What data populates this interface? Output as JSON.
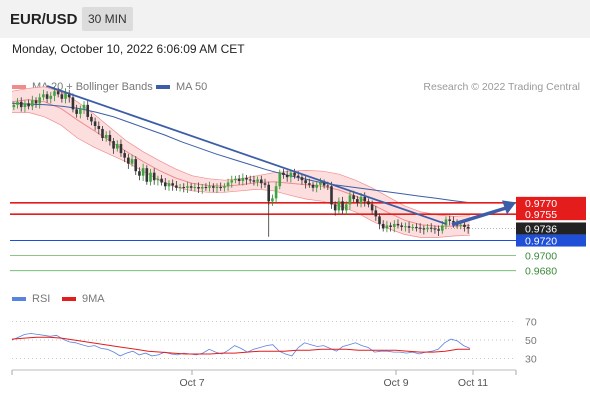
{
  "header": {
    "pair": "EUR/USD",
    "timeframe": "30 MIN"
  },
  "datetime": "Monday, October 10, 2022 6:06:09 AM CET",
  "legend": {
    "bollinger": "MA 20 + Bollinger Bands",
    "ma50": "MA 50",
    "rsi": "RSI",
    "rsi_ma": "9MA"
  },
  "credit": "Research © 2022 Trading Central",
  "colors": {
    "bollinger": "#f08c8c",
    "band_fill": "#fddede",
    "ma50": "#3c5ea8",
    "resistance": "#e41c1c",
    "support": "#1f4fd6",
    "target": "#66b266",
    "candle_up": "#2e8b2e",
    "candle_down": "#333333",
    "rsi": "#5a82e0",
    "rsi_ma": "#e41c1c",
    "current_price": "#222222"
  },
  "chart_data": [
    {
      "type": "candlestick",
      "title": "",
      "ylim": [
        0.9665,
        0.9925
      ],
      "x_tick_labels": [
        "Oct 7",
        "Oct 9",
        "Oct 11"
      ],
      "price_levels": [
        {
          "label": "0.9770",
          "value": 0.977,
          "kind": "resistance"
        },
        {
          "label": "0.9755",
          "value": 0.9755,
          "kind": "resistance"
        },
        {
          "label": "0.9736",
          "value": 0.9736,
          "kind": "current"
        },
        {
          "label": "0.9720",
          "value": 0.972,
          "kind": "support"
        },
        {
          "label": "0.9700",
          "value": 0.97,
          "kind": "target"
        },
        {
          "label": "0.9680",
          "value": 0.968,
          "kind": "target"
        }
      ],
      "close": [
        0.99,
        0.9904,
        0.9897,
        0.9902,
        0.9898,
        0.9906,
        0.9902,
        0.991,
        0.9914,
        0.9908,
        0.9912,
        0.9918,
        0.9914,
        0.9908,
        0.9916,
        0.991,
        0.9894,
        0.9888,
        0.9895,
        0.99,
        0.9884,
        0.9878,
        0.9872,
        0.9868,
        0.9856,
        0.986,
        0.9852,
        0.9842,
        0.9848,
        0.9836,
        0.983,
        0.9822,
        0.9828,
        0.9812,
        0.9806,
        0.9816,
        0.9798,
        0.981,
        0.98,
        0.9802,
        0.9797,
        0.9792,
        0.9796,
        0.9793,
        0.979,
        0.9791,
        0.979,
        0.9792,
        0.979,
        0.9791,
        0.9789,
        0.9791,
        0.979,
        0.9792,
        0.979,
        0.9791,
        0.979,
        0.9792,
        0.9797,
        0.98,
        0.9802,
        0.9799,
        0.9803,
        0.9801,
        0.98,
        0.9798,
        0.9801,
        0.9796,
        0.9794,
        0.9772,
        0.9776,
        0.9792,
        0.981,
        0.9807,
        0.9804,
        0.981,
        0.9806,
        0.9804,
        0.98,
        0.9796,
        0.9794,
        0.979,
        0.9794,
        0.9797,
        0.9793,
        0.9792,
        0.9768,
        0.976,
        0.9772,
        0.976,
        0.9768,
        0.978,
        0.9775,
        0.977,
        0.9778,
        0.9772,
        0.9768,
        0.976,
        0.9752,
        0.9742,
        0.9736,
        0.974,
        0.9738,
        0.9742,
        0.974,
        0.9738,
        0.9739,
        0.9737,
        0.9738,
        0.9737,
        0.9736,
        0.9735,
        0.9737,
        0.9736,
        0.9735,
        0.9733,
        0.974,
        0.9748,
        0.9746,
        0.9744,
        0.974,
        0.9741,
        0.9738,
        0.9736
      ],
      "ma50": [
        0.9902,
        0.9901,
        0.99,
        0.9898,
        0.9895,
        0.989,
        0.9884,
        0.9876,
        0.9868,
        0.986,
        0.9851,
        0.9843,
        0.9835,
        0.9828,
        0.9821,
        0.9814,
        0.9808,
        0.9803,
        0.9798,
        0.9794,
        0.9791,
        0.9788,
        0.9785,
        0.9782,
        0.9779,
        0.9776,
        0.9773,
        0.977
      ],
      "bb_mid": [
        0.9904,
        0.9907,
        0.9904,
        0.9895,
        0.988,
        0.9866,
        0.9852,
        0.9838,
        0.9825,
        0.9813,
        0.9803,
        0.9796,
        0.9793,
        0.9792,
        0.9794,
        0.9797,
        0.9798,
        0.9796,
        0.9794,
        0.9792,
        0.9787,
        0.9779,
        0.9768,
        0.9757,
        0.9747,
        0.9741,
        0.9739,
        0.9739,
        0.974
      ],
      "bb_upper": [
        0.9918,
        0.9922,
        0.9924,
        0.9917,
        0.9904,
        0.9888,
        0.987,
        0.9852,
        0.9838,
        0.9826,
        0.9815,
        0.9806,
        0.9802,
        0.98,
        0.9802,
        0.9806,
        0.981,
        0.9812,
        0.9813,
        0.9812,
        0.9808,
        0.98,
        0.979,
        0.9778,
        0.9766,
        0.9758,
        0.9754,
        0.9752,
        0.9753
      ],
      "bb_lower": [
        0.989,
        0.989,
        0.9884,
        0.9873,
        0.9856,
        0.9844,
        0.9834,
        0.9824,
        0.9812,
        0.98,
        0.9791,
        0.9786,
        0.9784,
        0.9784,
        0.9786,
        0.9788,
        0.9786,
        0.978,
        0.9775,
        0.9772,
        0.9766,
        0.9758,
        0.9746,
        0.9736,
        0.9728,
        0.9724,
        0.9724,
        0.9726,
        0.9727
      ]
    },
    {
      "type": "line",
      "title": "",
      "ylim": [
        20,
        80
      ],
      "y_tick_labels": [
        "70",
        "50",
        "30"
      ],
      "x_tick_labels": [
        "Oct 7",
        "Oct 9",
        "Oct 11"
      ],
      "series": [
        {
          "name": "RSI",
          "values": [
            50,
            53,
            56,
            57,
            56,
            55,
            54,
            55,
            51,
            48,
            47,
            45,
            43,
            44,
            41,
            40,
            37,
            33,
            36,
            38,
            34,
            36,
            33,
            34,
            37,
            35,
            34,
            36,
            35,
            34,
            36,
            40,
            37,
            35,
            39,
            44,
            41,
            37,
            40,
            42,
            44,
            45,
            38,
            35,
            33,
            42,
            47,
            45,
            43,
            44,
            41,
            38,
            43,
            45,
            47,
            44,
            42,
            37,
            38,
            38,
            37,
            37,
            36,
            37,
            35,
            37,
            38,
            40,
            47,
            51,
            49,
            44,
            41
          ]
        },
        {
          "name": "9MA",
          "values": [
            51,
            52,
            53,
            53,
            52,
            50,
            48,
            46,
            44,
            42,
            40,
            38,
            37,
            36,
            35,
            35,
            35,
            36,
            36,
            37,
            38,
            38,
            38,
            39,
            39,
            40,
            40,
            40,
            39,
            39,
            39,
            39,
            38,
            37,
            37,
            38,
            40,
            40
          ]
        }
      ]
    }
  ]
}
